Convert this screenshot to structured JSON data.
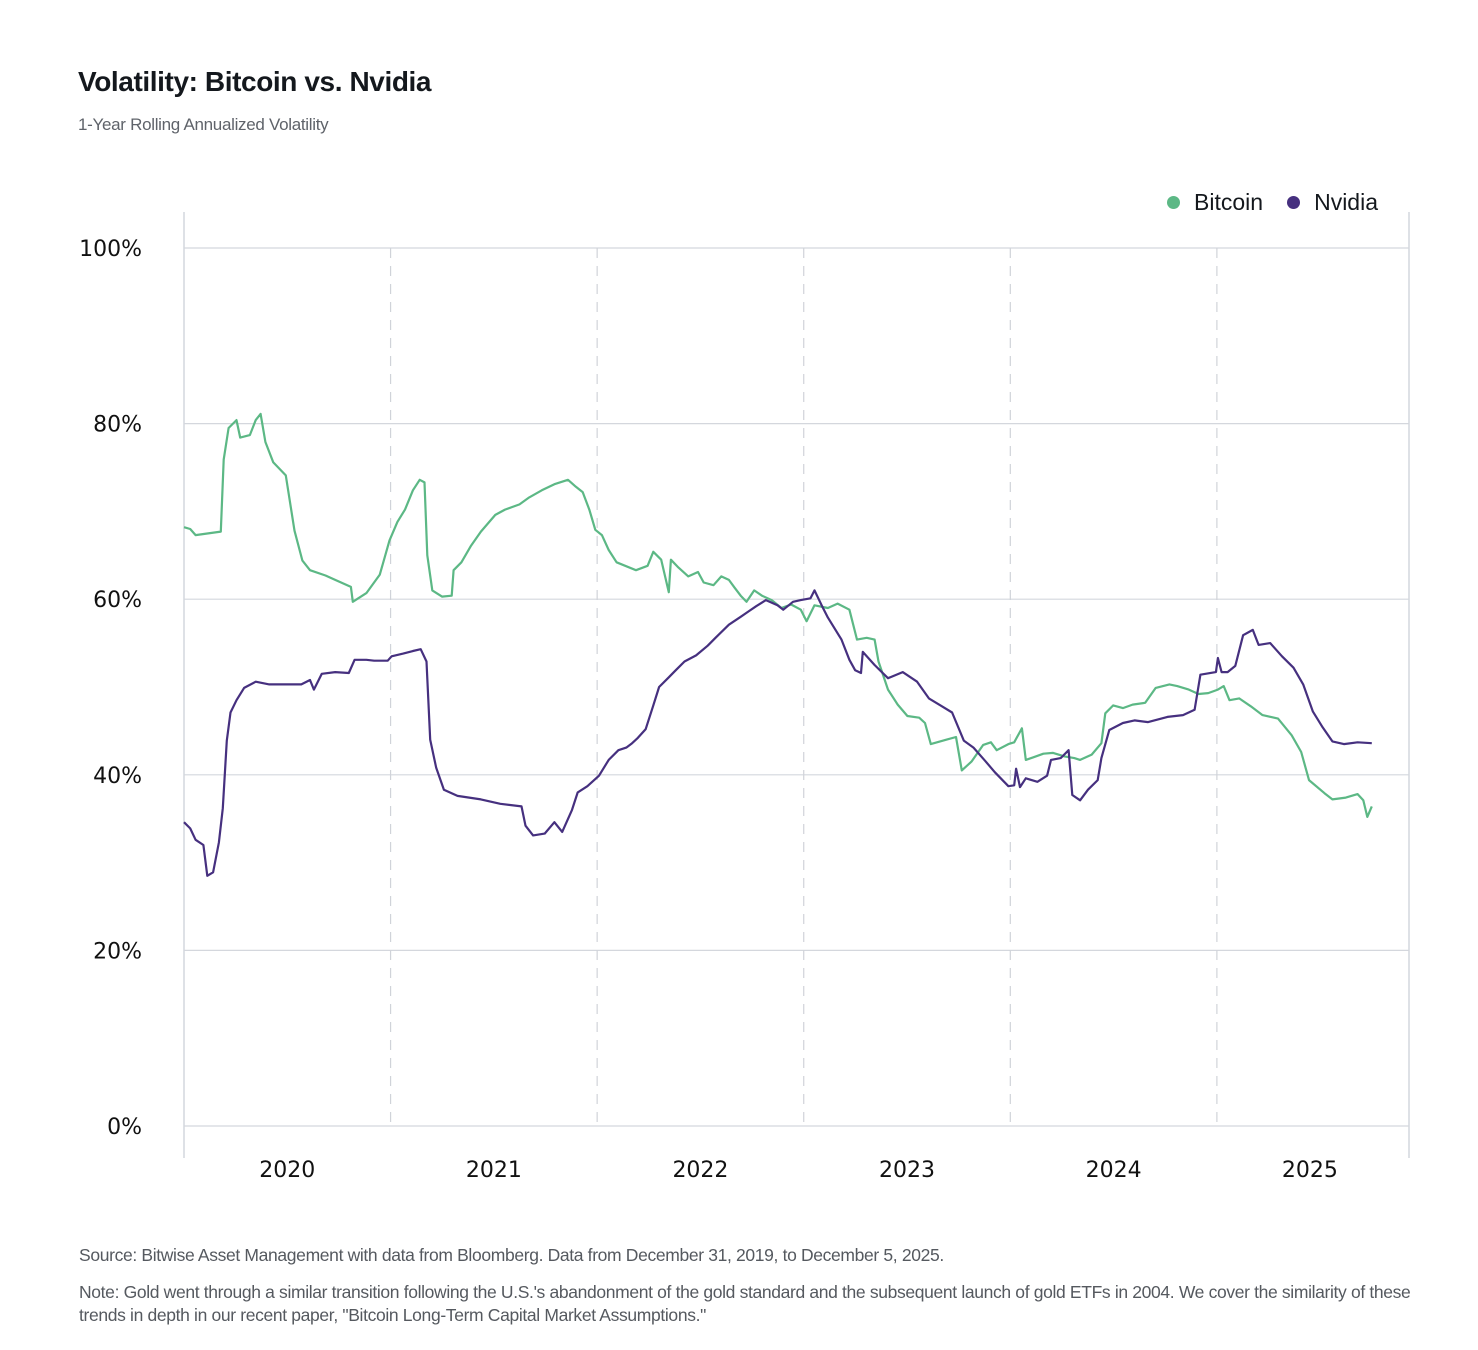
{
  "header": {
    "title": "Volatility: Bitcoin vs. Nvidia",
    "subtitle": "1-Year Rolling Annualized Volatility"
  },
  "legend": [
    {
      "label": "Bitcoin",
      "color": "#5cb885"
    },
    {
      "label": "Nvidia",
      "color": "#46307f"
    }
  ],
  "footer": {
    "source": "Source: Bitwise Asset Management with data from Bloomberg. Data from December 31, 2019, to December 5, 2025.",
    "note": "Note: Gold went through a similar transition following the U.S.'s abandonment of the gold standard and the subsequent launch of gold ETFs in 2004. We cover the similarity of these trends in depth in our recent paper, \"Bitcoin Long-Term Capital Market Assumptions.\""
  },
  "chart_data": {
    "type": "line",
    "title": "Volatility: Bitcoin vs. Nvidia",
    "subtitle": "1-Year Rolling Annualized Volatility",
    "xlabel": "",
    "ylabel": "",
    "x_unit": "decimal year",
    "xlim": [
      2020.0,
      2025.93
    ],
    "ylim": [
      0,
      100
    ],
    "y_ticks": [
      0,
      20,
      40,
      60,
      80,
      100
    ],
    "y_tick_labels": [
      "0%",
      "20%",
      "40%",
      "60%",
      "80%",
      "100%"
    ],
    "x_gridlines": [
      2021,
      2022,
      2023,
      2024,
      2025
    ],
    "x_tick_labels": [
      {
        "label": "2020",
        "x": 2020.5
      },
      {
        "label": "2021",
        "x": 2021.5
      },
      {
        "label": "2022",
        "x": 2022.5
      },
      {
        "label": "2023",
        "x": 2023.5
      },
      {
        "label": "2024",
        "x": 2024.5
      },
      {
        "label": "2025",
        "x": 2025.45
      }
    ],
    "grid": {
      "horizontal": "solid",
      "vertical": "dashed"
    },
    "legend_position": "top-right",
    "series": [
      {
        "name": "Bitcoin",
        "color": "#5cb885",
        "points": [
          [
            2020.0,
            68.2
          ],
          [
            2020.03,
            68.0
          ],
          [
            2020.056,
            67.3
          ],
          [
            2020.178,
            67.7
          ],
          [
            2020.192,
            75.9
          ],
          [
            2020.216,
            79.5
          ],
          [
            2020.254,
            80.4
          ],
          [
            2020.272,
            78.4
          ],
          [
            2020.319,
            78.7
          ],
          [
            2020.347,
            80.4
          ],
          [
            2020.371,
            81.1
          ],
          [
            2020.394,
            77.9
          ],
          [
            2020.432,
            75.6
          ],
          [
            2020.493,
            74.1
          ],
          [
            2020.535,
            67.8
          ],
          [
            2020.573,
            64.4
          ],
          [
            2020.61,
            63.3
          ],
          [
            2020.685,
            62.7
          ],
          [
            2020.732,
            62.2
          ],
          [
            2020.808,
            61.4
          ],
          [
            2020.817,
            59.7
          ],
          [
            2020.883,
            60.7
          ],
          [
            2020.948,
            62.8
          ],
          [
            2020.995,
            66.7
          ],
          [
            2021.033,
            68.8
          ],
          [
            2021.07,
            70.2
          ],
          [
            2021.108,
            72.4
          ],
          [
            2021.141,
            73.6
          ],
          [
            2021.164,
            73.3
          ],
          [
            2021.178,
            65.0
          ],
          [
            2021.202,
            61.0
          ],
          [
            2021.249,
            60.3
          ],
          [
            2021.296,
            60.4
          ],
          [
            2021.305,
            63.3
          ],
          [
            2021.343,
            64.2
          ],
          [
            2021.39,
            66.1
          ],
          [
            2021.437,
            67.7
          ],
          [
            2021.507,
            69.6
          ],
          [
            2021.554,
            70.2
          ],
          [
            2021.624,
            70.8
          ],
          [
            2021.671,
            71.6
          ],
          [
            2021.732,
            72.4
          ],
          [
            2021.793,
            73.1
          ],
          [
            2021.859,
            73.6
          ],
          [
            2021.897,
            72.8
          ],
          [
            2021.93,
            72.2
          ],
          [
            2021.962,
            70.2
          ],
          [
            2021.991,
            67.9
          ],
          [
            2022.023,
            67.3
          ],
          [
            2022.056,
            65.6
          ],
          [
            2022.094,
            64.2
          ],
          [
            2022.188,
            63.3
          ],
          [
            2022.244,
            63.8
          ],
          [
            2022.272,
            65.4
          ],
          [
            2022.31,
            64.5
          ],
          [
            2022.347,
            60.8
          ],
          [
            2022.357,
            64.5
          ],
          [
            2022.394,
            63.6
          ],
          [
            2022.441,
            62.6
          ],
          [
            2022.488,
            63.1
          ],
          [
            2022.516,
            61.9
          ],
          [
            2022.563,
            61.6
          ],
          [
            2022.601,
            62.6
          ],
          [
            2022.638,
            62.2
          ],
          [
            2022.666,
            61.3
          ],
          [
            2022.695,
            60.4
          ],
          [
            2022.723,
            59.7
          ],
          [
            2022.76,
            61.0
          ],
          [
            2022.798,
            60.4
          ],
          [
            2022.845,
            59.9
          ],
          [
            2022.892,
            59.0
          ],
          [
            2022.939,
            59.4
          ],
          [
            2022.986,
            58.8
          ],
          [
            2023.014,
            57.5
          ],
          [
            2023.052,
            59.3
          ],
          [
            2023.117,
            59.0
          ],
          [
            2023.164,
            59.5
          ],
          [
            2023.221,
            58.8
          ],
          [
            2023.258,
            55.4
          ],
          [
            2023.305,
            55.6
          ],
          [
            2023.343,
            55.4
          ],
          [
            2023.362,
            52.9
          ],
          [
            2023.408,
            49.7
          ],
          [
            2023.455,
            48.0
          ],
          [
            2023.502,
            46.7
          ],
          [
            2023.559,
            46.5
          ],
          [
            2023.587,
            45.9
          ],
          [
            2023.615,
            43.5
          ],
          [
            2023.69,
            44.0
          ],
          [
            2023.737,
            44.3
          ],
          [
            2023.765,
            40.5
          ],
          [
            2023.812,
            41.5
          ],
          [
            2023.869,
            43.4
          ],
          [
            2023.906,
            43.7
          ],
          [
            2023.934,
            42.8
          ],
          [
            2023.991,
            43.5
          ],
          [
            2024.019,
            43.7
          ],
          [
            2024.056,
            45.3
          ],
          [
            2024.075,
            41.7
          ],
          [
            2024.113,
            42.0
          ],
          [
            2024.16,
            42.4
          ],
          [
            2024.207,
            42.5
          ],
          [
            2024.263,
            42.1
          ],
          [
            2024.31,
            41.9
          ],
          [
            2024.338,
            41.7
          ],
          [
            2024.394,
            42.3
          ],
          [
            2024.441,
            43.6
          ],
          [
            2024.46,
            47.0
          ],
          [
            2024.498,
            47.9
          ],
          [
            2024.545,
            47.6
          ],
          [
            2024.592,
            48.0
          ],
          [
            2024.653,
            48.2
          ],
          [
            2024.704,
            49.9
          ],
          [
            2024.77,
            50.3
          ],
          [
            2024.808,
            50.1
          ],
          [
            2024.864,
            49.7
          ],
          [
            2024.911,
            49.2
          ],
          [
            2024.958,
            49.3
          ],
          [
            2025.005,
            49.7
          ],
          [
            2025.033,
            50.1
          ],
          [
            2025.061,
            48.5
          ],
          [
            2025.108,
            48.7
          ],
          [
            2025.164,
            47.8
          ],
          [
            2025.221,
            46.8
          ],
          [
            2025.296,
            46.4
          ],
          [
            2025.362,
            44.5
          ],
          [
            2025.408,
            42.6
          ],
          [
            2025.446,
            39.4
          ],
          [
            2025.521,
            37.9
          ],
          [
            2025.559,
            37.2
          ],
          [
            2025.624,
            37.4
          ],
          [
            2025.681,
            37.8
          ],
          [
            2025.709,
            37.1
          ],
          [
            2025.728,
            35.2
          ],
          [
            2025.75,
            36.4
          ]
        ]
      },
      {
        "name": "Nvidia",
        "color": "#46307f",
        "points": [
          [
            2020.0,
            34.6
          ],
          [
            2020.03,
            33.9
          ],
          [
            2020.056,
            32.6
          ],
          [
            2020.094,
            32.0
          ],
          [
            2020.113,
            28.5
          ],
          [
            2020.141,
            28.9
          ],
          [
            2020.169,
            32.3
          ],
          [
            2020.188,
            36.2
          ],
          [
            2020.207,
            43.9
          ],
          [
            2020.225,
            47.1
          ],
          [
            2020.254,
            48.5
          ],
          [
            2020.291,
            49.9
          ],
          [
            2020.347,
            50.6
          ],
          [
            2020.413,
            50.3
          ],
          [
            2020.498,
            50.3
          ],
          [
            2020.568,
            50.3
          ],
          [
            2020.61,
            50.8
          ],
          [
            2020.629,
            49.7
          ],
          [
            2020.667,
            51.5
          ],
          [
            2020.732,
            51.7
          ],
          [
            2020.798,
            51.6
          ],
          [
            2020.826,
            53.1
          ],
          [
            2020.883,
            53.1
          ],
          [
            2020.92,
            53.0
          ],
          [
            2020.986,
            53.0
          ],
          [
            2021.005,
            53.5
          ],
          [
            2021.061,
            53.8
          ],
          [
            2021.108,
            54.1
          ],
          [
            2021.146,
            54.3
          ],
          [
            2021.174,
            52.9
          ],
          [
            2021.192,
            44.0
          ],
          [
            2021.221,
            40.8
          ],
          [
            2021.258,
            38.3
          ],
          [
            2021.324,
            37.6
          ],
          [
            2021.437,
            37.2
          ],
          [
            2021.531,
            36.7
          ],
          [
            2021.634,
            36.4
          ],
          [
            2021.653,
            34.2
          ],
          [
            2021.69,
            33.1
          ],
          [
            2021.746,
            33.3
          ],
          [
            2021.793,
            34.6
          ],
          [
            2021.831,
            33.5
          ],
          [
            2021.878,
            36.0
          ],
          [
            2021.906,
            38.0
          ],
          [
            2021.953,
            38.7
          ],
          [
            2022.009,
            39.9
          ],
          [
            2022.056,
            41.7
          ],
          [
            2022.103,
            42.8
          ],
          [
            2022.141,
            43.1
          ],
          [
            2022.169,
            43.6
          ],
          [
            2022.197,
            44.2
          ],
          [
            2022.235,
            45.2
          ],
          [
            2022.272,
            47.9
          ],
          [
            2022.3,
            50.0
          ],
          [
            2022.347,
            51.1
          ],
          [
            2022.376,
            51.8
          ],
          [
            2022.423,
            52.9
          ],
          [
            2022.479,
            53.6
          ],
          [
            2022.535,
            54.7
          ],
          [
            2022.573,
            55.6
          ],
          [
            2022.638,
            57.1
          ],
          [
            2022.695,
            58.0
          ],
          [
            2022.732,
            58.6
          ],
          [
            2022.77,
            59.2
          ],
          [
            2022.817,
            59.9
          ],
          [
            2022.873,
            59.3
          ],
          [
            2022.901,
            58.8
          ],
          [
            2022.948,
            59.7
          ],
          [
            2022.986,
            59.9
          ],
          [
            2023.033,
            60.1
          ],
          [
            2023.052,
            61.0
          ],
          [
            2023.089,
            59.2
          ],
          [
            2023.117,
            57.9
          ],
          [
            2023.183,
            55.4
          ],
          [
            2023.221,
            53.1
          ],
          [
            2023.249,
            51.9
          ],
          [
            2023.277,
            51.6
          ],
          [
            2023.286,
            54.0
          ],
          [
            2023.343,
            52.5
          ],
          [
            2023.408,
            51.0
          ],
          [
            2023.479,
            51.7
          ],
          [
            2023.549,
            50.6
          ],
          [
            2023.606,
            48.7
          ],
          [
            2023.662,
            47.9
          ],
          [
            2023.718,
            47.1
          ],
          [
            2023.775,
            43.9
          ],
          [
            2023.822,
            43.1
          ],
          [
            2023.878,
            41.6
          ],
          [
            2023.925,
            40.3
          ],
          [
            2023.991,
            38.7
          ],
          [
            2024.019,
            38.8
          ],
          [
            2024.028,
            40.7
          ],
          [
            2024.047,
            38.6
          ],
          [
            2024.075,
            39.6
          ],
          [
            2024.131,
            39.2
          ],
          [
            2024.178,
            39.9
          ],
          [
            2024.197,
            41.7
          ],
          [
            2024.244,
            41.9
          ],
          [
            2024.282,
            42.8
          ],
          [
            2024.3,
            37.7
          ],
          [
            2024.338,
            37.1
          ],
          [
            2024.376,
            38.3
          ],
          [
            2024.423,
            39.4
          ],
          [
            2024.441,
            41.9
          ],
          [
            2024.479,
            45.1
          ],
          [
            2024.545,
            45.9
          ],
          [
            2024.601,
            46.2
          ],
          [
            2024.667,
            46.0
          ],
          [
            2024.761,
            46.6
          ],
          [
            2024.836,
            46.8
          ],
          [
            2024.892,
            47.4
          ],
          [
            2024.92,
            51.4
          ],
          [
            2024.995,
            51.7
          ],
          [
            2025.005,
            53.3
          ],
          [
            2025.023,
            51.7
          ],
          [
            2025.052,
            51.7
          ],
          [
            2025.089,
            52.4
          ],
          [
            2025.127,
            55.9
          ],
          [
            2025.174,
            56.5
          ],
          [
            2025.202,
            54.8
          ],
          [
            2025.258,
            55.0
          ],
          [
            2025.315,
            53.5
          ],
          [
            2025.371,
            52.2
          ],
          [
            2025.418,
            50.3
          ],
          [
            2025.465,
            47.2
          ],
          [
            2025.512,
            45.4
          ],
          [
            2025.559,
            43.8
          ],
          [
            2025.615,
            43.5
          ],
          [
            2025.681,
            43.7
          ],
          [
            2025.75,
            43.6
          ]
        ]
      }
    ]
  }
}
